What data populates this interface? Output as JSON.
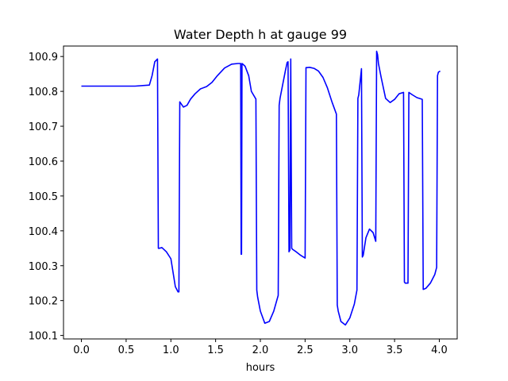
{
  "chart_data": {
    "type": "line",
    "title": "Water Depth h at gauge 99",
    "xlabel": "hours",
    "ylabel": "",
    "xlim": [
      -0.2,
      4.2
    ],
    "ylim": [
      100.09,
      100.93
    ],
    "grid": false,
    "x_ticks": [
      0.0,
      0.5,
      1.0,
      1.5,
      2.0,
      2.5,
      3.0,
      3.5,
      4.0
    ],
    "x_tick_labels": [
      "0.0",
      "0.5",
      "1.0",
      "1.5",
      "2.0",
      "2.5",
      "3.0",
      "3.5",
      "4.0"
    ],
    "y_ticks": [
      100.1,
      100.2,
      100.3,
      100.4,
      100.5,
      100.6,
      100.7,
      100.8,
      100.9
    ],
    "y_tick_labels": [
      "100.1",
      "100.2",
      "100.3",
      "100.4",
      "100.5",
      "100.6",
      "100.7",
      "100.8",
      "100.9"
    ],
    "series": [
      {
        "color": "#0000ff",
        "x": [
          0.0,
          0.3,
          0.6,
          0.76,
          0.79,
          0.82,
          0.85,
          0.86,
          0.87,
          0.9,
          0.95,
          1.0,
          1.05,
          1.08,
          1.09,
          1.1,
          1.14,
          1.18,
          1.22,
          1.27,
          1.33,
          1.4,
          1.46,
          1.52,
          1.6,
          1.68,
          1.75,
          1.78,
          1.785,
          1.79,
          1.795,
          1.8,
          1.83,
          1.87,
          1.9,
          1.95,
          1.96,
          1.97,
          2.0,
          2.05,
          2.1,
          2.15,
          2.2,
          2.21,
          2.22,
          2.25,
          2.28,
          2.3,
          2.31,
          2.32,
          2.33,
          2.34,
          2.35,
          2.36,
          2.4,
          2.45,
          2.5,
          2.51,
          2.52,
          2.55,
          2.6,
          2.65,
          2.7,
          2.75,
          2.8,
          2.85,
          2.86,
          2.87,
          2.9,
          2.95,
          3.0,
          3.05,
          3.08,
          3.09,
          3.1,
          3.13,
          3.14,
          3.15,
          3.18,
          3.22,
          3.26,
          3.29,
          3.3,
          3.31,
          3.32,
          3.35,
          3.4,
          3.45,
          3.5,
          3.55,
          3.6,
          3.61,
          3.62,
          3.65,
          3.66,
          3.67,
          3.7,
          3.75,
          3.8,
          3.81,
          3.82,
          3.85,
          3.9,
          3.95,
          3.97,
          3.98,
          3.99,
          4.01
        ],
        "y": [
          100.815,
          100.815,
          100.815,
          100.818,
          100.845,
          100.885,
          100.893,
          100.35,
          100.35,
          100.352,
          100.34,
          100.32,
          100.24,
          100.225,
          100.225,
          100.77,
          100.755,
          100.76,
          100.778,
          100.793,
          100.807,
          100.814,
          100.826,
          100.845,
          100.867,
          100.878,
          100.88,
          100.88,
          100.333,
          100.333,
          100.88,
          100.879,
          100.872,
          100.845,
          100.8,
          100.778,
          100.23,
          100.21,
          100.17,
          100.135,
          100.14,
          100.17,
          100.215,
          100.76,
          100.78,
          100.82,
          100.86,
          100.883,
          100.885,
          100.34,
          100.345,
          100.893,
          100.35,
          100.347,
          100.34,
          100.33,
          100.322,
          100.868,
          100.868,
          100.869,
          100.866,
          100.858,
          100.84,
          100.81,
          100.77,
          100.735,
          100.187,
          100.17,
          100.14,
          100.13,
          100.15,
          100.19,
          100.23,
          100.78,
          100.79,
          100.865,
          100.325,
          100.33,
          100.38,
          100.405,
          100.395,
          100.37,
          100.915,
          100.905,
          100.88,
          100.84,
          100.78,
          100.768,
          100.777,
          100.793,
          100.797,
          100.253,
          100.25,
          100.25,
          100.797,
          100.795,
          100.79,
          100.782,
          100.778,
          100.777,
          100.232,
          100.235,
          100.25,
          100.275,
          100.295,
          100.845,
          100.855,
          100.858
        ]
      }
    ]
  }
}
